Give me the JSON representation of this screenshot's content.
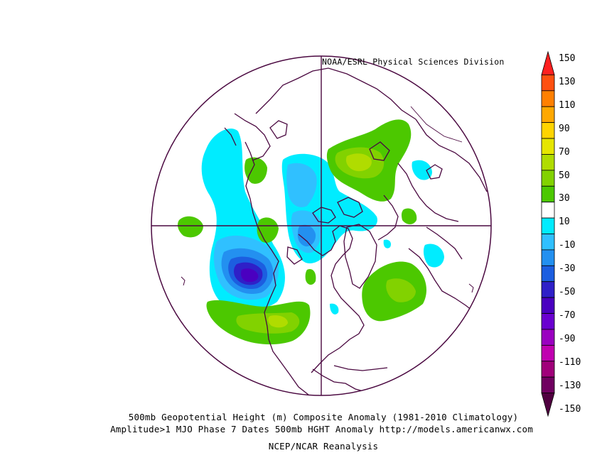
{
  "header": {
    "credit": "NOAA/ESRL Physical Sciences Division"
  },
  "caption": {
    "line1": "500mb Geopotential Height (m) Composite Anomaly (1981-2010 Climatology)",
    "line2": "Amplitude>1 MJO Phase 7 Dates 500mb HGHT Anomaly http://models.americanwx.com",
    "line3": "NCEP/NCAR Reanalysis"
  },
  "colorbar": {
    "ticks": [
      "150",
      "130",
      "110",
      "90",
      "70",
      "50",
      "30",
      "10",
      "-10",
      "-30",
      "-50",
      "-70",
      "-90",
      "-110",
      "-130",
      "-150"
    ],
    "colors": [
      "#ff2020",
      "#ff5010",
      "#ff8000",
      "#ffa800",
      "#ffd400",
      "#e6e600",
      "#b0dc00",
      "#82d200",
      "#4cc800",
      "#ffffff",
      "#00ecff",
      "#30c0ff",
      "#2390f0",
      "#1c5ee0",
      "#2f20c8",
      "#4a00c0",
      "#6a00d0",
      "#9a00c0",
      "#c000b0",
      "#a0007a",
      "#700060",
      "#500040"
    ]
  },
  "map": {
    "projection": "north-polar-stereographic",
    "anomaly_regions": [
      {
        "label": "-70",
        "color": "#4a00c0"
      },
      {
        "label": "+50",
        "color": "#b0dc00"
      },
      {
        "label": "+30",
        "color": "#82d200"
      }
    ]
  }
}
